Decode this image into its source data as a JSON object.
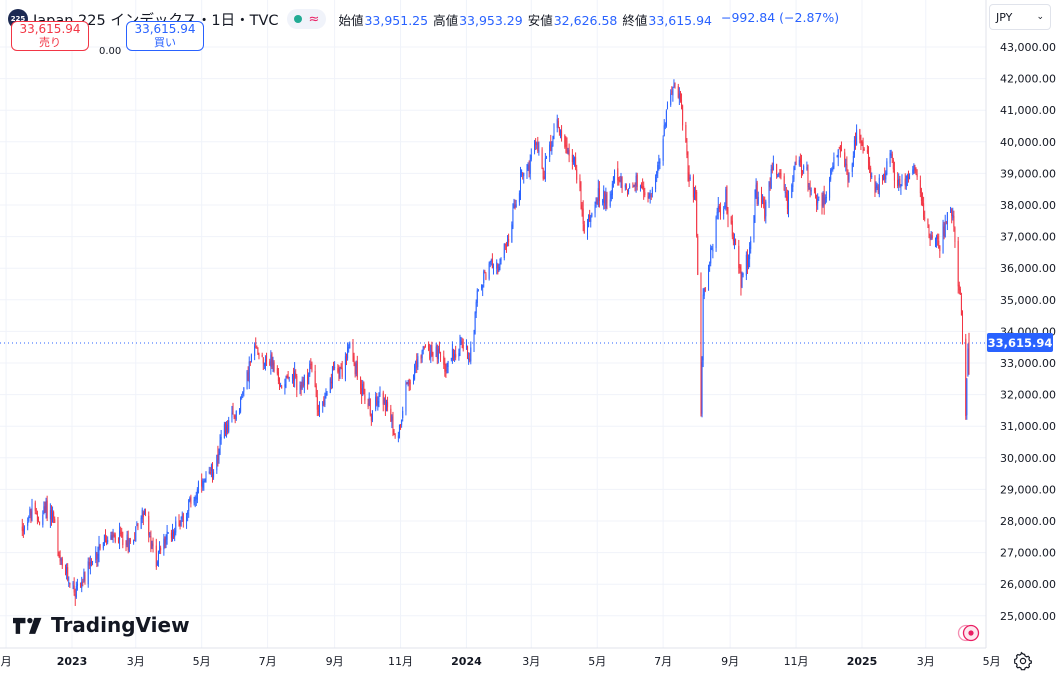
{
  "header": {
    "symbol_badge": "225",
    "title": "Japan 225 インデックス・1日・TVC",
    "ohlc": [
      {
        "label": "始値",
        "value": "33,951.25"
      },
      {
        "label": "高値",
        "value": "33,953.29"
      },
      {
        "label": "安値",
        "value": "32,626.58"
      },
      {
        "label": "終値",
        "value": "33,615.94"
      }
    ],
    "change": "−992.84 (−2.87%)"
  },
  "trade": {
    "sell_price": "33,615.94",
    "sell_label": "売り",
    "spread": "0.00",
    "buy_price": "33,615.94",
    "buy_label": "買い"
  },
  "currency": {
    "value": "JPY"
  },
  "brand": "TradingView",
  "colors": {
    "up": "#2962ff",
    "down": "#f23645",
    "accent": "#2962ff",
    "grid": "#f0f3fa"
  },
  "icons": {
    "settings": "gear-icon",
    "record": "record-icon",
    "dropdown": "chevron-down-icon",
    "status": "market-open-dot"
  },
  "chart_data": {
    "type": "candlestick",
    "current_price_label": "33,615.94",
    "current_price": 33615.94,
    "ylim": [
      24400,
      43700
    ],
    "y_ticks": [
      {
        "value": 43000,
        "label": "43,000.00"
      },
      {
        "value": 42000,
        "label": "42,000.00"
      },
      {
        "value": 41000,
        "label": "41,000.00"
      },
      {
        "value": 40000,
        "label": "40,000.00"
      },
      {
        "value": 39000,
        "label": "39,000.00"
      },
      {
        "value": 38000,
        "label": "38,000.00"
      },
      {
        "value": 37000,
        "label": "37,000.00"
      },
      {
        "value": 36000,
        "label": "36,000.00"
      },
      {
        "value": 35000,
        "label": "35,000.00"
      },
      {
        "value": 34000,
        "label": "34,000.00"
      },
      {
        "value": 33000,
        "label": "33,000.00"
      },
      {
        "value": 32000,
        "label": "32,000.00"
      },
      {
        "value": 31000,
        "label": "31,000.00"
      },
      {
        "value": 30000,
        "label": "30,000.00"
      },
      {
        "value": 29000,
        "label": "29,000.00"
      },
      {
        "value": 28000,
        "label": "28,000.00"
      },
      {
        "value": 27000,
        "label": "27,000.00"
      },
      {
        "value": 26000,
        "label": "26,000.00"
      },
      {
        "value": 25000,
        "label": "25,000.00"
      }
    ],
    "x_range": [
      "2022-11-15",
      "2025-04-30"
    ],
    "x_ticks": [
      {
        "date": "2022-11-01",
        "label": "月",
        "bold": false
      },
      {
        "date": "2023-01-01",
        "label": "2023",
        "bold": true
      },
      {
        "date": "2023-03-01",
        "label": "3月",
        "bold": false
      },
      {
        "date": "2023-05-01",
        "label": "5月",
        "bold": false
      },
      {
        "date": "2023-07-01",
        "label": "7月",
        "bold": false
      },
      {
        "date": "2023-09-01",
        "label": "9月",
        "bold": false
      },
      {
        "date": "2023-11-01",
        "label": "11月",
        "bold": false
      },
      {
        "date": "2024-01-01",
        "label": "2024",
        "bold": true
      },
      {
        "date": "2024-03-01",
        "label": "3月",
        "bold": false
      },
      {
        "date": "2024-05-01",
        "label": "5月",
        "bold": false
      },
      {
        "date": "2024-07-01",
        "label": "7月",
        "bold": false
      },
      {
        "date": "2024-09-01",
        "label": "9月",
        "bold": false
      },
      {
        "date": "2024-11-01",
        "label": "11月",
        "bold": false
      },
      {
        "date": "2025-01-01",
        "label": "2025",
        "bold": true
      },
      {
        "date": "2025-03-01",
        "label": "3月",
        "bold": false
      },
      {
        "date": "2025-05-01",
        "label": "5月",
        "bold": false
      }
    ],
    "series": [
      {
        "name": "Japan 225",
        "points": [
          [
            "2022-11-16",
            27800
          ],
          [
            "2022-11-25",
            28300
          ],
          [
            "2022-12-01",
            28000
          ],
          [
            "2022-12-08",
            28400
          ],
          [
            "2022-12-15",
            28100
          ],
          [
            "2022-12-20",
            26700
          ],
          [
            "2022-12-27",
            26300
          ],
          [
            "2023-01-04",
            25800
          ],
          [
            "2023-01-12",
            26200
          ],
          [
            "2023-01-20",
            26600
          ],
          [
            "2023-01-27",
            27300
          ],
          [
            "2023-02-06",
            27400
          ],
          [
            "2023-02-15",
            27500
          ],
          [
            "2023-02-24",
            27300
          ],
          [
            "2023-03-03",
            27900
          ],
          [
            "2023-03-09",
            28400
          ],
          [
            "2023-03-14",
            27300
          ],
          [
            "2023-03-20",
            26800
          ],
          [
            "2023-03-28",
            27400
          ],
          [
            "2023-04-05",
            27700
          ],
          [
            "2023-04-14",
            28200
          ],
          [
            "2023-04-21",
            28600
          ],
          [
            "2023-05-01",
            29100
          ],
          [
            "2023-05-08",
            29300
          ],
          [
            "2023-05-17",
            30300
          ],
          [
            "2023-05-23",
            30900
          ],
          [
            "2023-05-31",
            31300
          ],
          [
            "2023-06-07",
            31900
          ],
          [
            "2023-06-14",
            32900
          ],
          [
            "2023-06-20",
            33500
          ],
          [
            "2023-06-26",
            33200
          ],
          [
            "2023-07-06",
            33000
          ],
          [
            "2023-07-12",
            32200
          ],
          [
            "2023-07-19",
            32700
          ],
          [
            "2023-07-27",
            32400
          ],
          [
            "2023-08-03",
            32200
          ],
          [
            "2023-08-10",
            32900
          ],
          [
            "2023-08-17",
            31600
          ],
          [
            "2023-08-25",
            31900
          ],
          [
            "2023-09-01",
            32900
          ],
          [
            "2023-09-08",
            32800
          ],
          [
            "2023-09-15",
            33500
          ],
          [
            "2023-09-22",
            32600
          ],
          [
            "2023-09-29",
            32000
          ],
          [
            "2023-10-06",
            31300
          ],
          [
            "2023-10-13",
            32300
          ],
          [
            "2023-10-20",
            31500
          ],
          [
            "2023-10-26",
            30800
          ],
          [
            "2023-10-31",
            30900
          ],
          [
            "2023-11-06",
            32400
          ],
          [
            "2023-11-14",
            32700
          ],
          [
            "2023-11-21",
            33500
          ],
          [
            "2023-11-28",
            33400
          ],
          [
            "2023-12-05",
            33300
          ],
          [
            "2023-12-12",
            32800
          ],
          [
            "2023-12-19",
            33300
          ],
          [
            "2023-12-27",
            33600
          ],
          [
            "2024-01-04",
            33200
          ],
          [
            "2024-01-11",
            35100
          ],
          [
            "2024-01-18",
            35800
          ],
          [
            "2024-01-25",
            36200
          ],
          [
            "2024-02-01",
            36100
          ],
          [
            "2024-02-08",
            36800
          ],
          [
            "2024-02-15",
            38000
          ],
          [
            "2024-02-22",
            39100
          ],
          [
            "2024-02-29",
            39200
          ],
          [
            "2024-03-06",
            40100
          ],
          [
            "2024-03-12",
            38900
          ],
          [
            "2024-03-19",
            40000
          ],
          [
            "2024-03-26",
            40600
          ],
          [
            "2024-04-02",
            39800
          ],
          [
            "2024-04-09",
            39500
          ],
          [
            "2024-04-17",
            38000
          ],
          [
            "2024-04-19",
            37100
          ],
          [
            "2024-04-26",
            37800
          ],
          [
            "2024-05-03",
            38300
          ],
          [
            "2024-05-10",
            38200
          ],
          [
            "2024-05-17",
            38800
          ],
          [
            "2024-05-24",
            38600
          ],
          [
            "2024-05-31",
            38600
          ],
          [
            "2024-06-07",
            38700
          ],
          [
            "2024-06-14",
            38200
          ],
          [
            "2024-06-21",
            38600
          ],
          [
            "2024-06-28",
            39300
          ],
          [
            "2024-07-04",
            40900
          ],
          [
            "2024-07-11",
            42100
          ],
          [
            "2024-07-17",
            41200
          ],
          [
            "2024-07-24",
            39200
          ],
          [
            "2024-07-31",
            38200
          ],
          [
            "2024-08-02",
            35900
          ],
          [
            "2024-08-05",
            31600
          ],
          [
            "2024-08-07",
            35000
          ],
          [
            "2024-08-14",
            36500
          ],
          [
            "2024-08-21",
            37800
          ],
          [
            "2024-08-28",
            38200
          ],
          [
            "2024-09-04",
            37000
          ],
          [
            "2024-09-11",
            35600
          ],
          [
            "2024-09-18",
            36400
          ],
          [
            "2024-09-25",
            38400
          ],
          [
            "2024-09-30",
            37900
          ],
          [
            "2024-10-03",
            37800
          ],
          [
            "2024-10-10",
            39200
          ],
          [
            "2024-10-17",
            38900
          ],
          [
            "2024-10-24",
            38100
          ],
          [
            "2024-10-31",
            39100
          ],
          [
            "2024-11-07",
            39300
          ],
          [
            "2024-11-14",
            38600
          ],
          [
            "2024-11-21",
            38100
          ],
          [
            "2024-11-28",
            38300
          ],
          [
            "2024-12-05",
            39300
          ],
          [
            "2024-12-12",
            39600
          ],
          [
            "2024-12-19",
            38900
          ],
          [
            "2024-12-27",
            40200
          ],
          [
            "2025-01-06",
            39400
          ],
          [
            "2025-01-14",
            38400
          ],
          [
            "2025-01-21",
            39000
          ],
          [
            "2025-01-27",
            39600
          ],
          [
            "2025-02-03",
            38600
          ],
          [
            "2025-02-10",
            38800
          ],
          [
            "2025-02-18",
            39200
          ],
          [
            "2025-02-25",
            38200
          ],
          [
            "2025-02-28",
            37300
          ],
          [
            "2025-03-07",
            36900
          ],
          [
            "2025-03-14",
            36800
          ],
          [
            "2025-03-21",
            37700
          ],
          [
            "2025-03-26",
            37900
          ],
          [
            "2025-03-31",
            35600
          ],
          [
            "2025-04-03",
            34700
          ],
          [
            "2025-04-07",
            31200
          ],
          [
            "2025-04-09",
            33600
          ],
          [
            "2025-04-10",
            33615.94
          ]
        ]
      }
    ]
  }
}
